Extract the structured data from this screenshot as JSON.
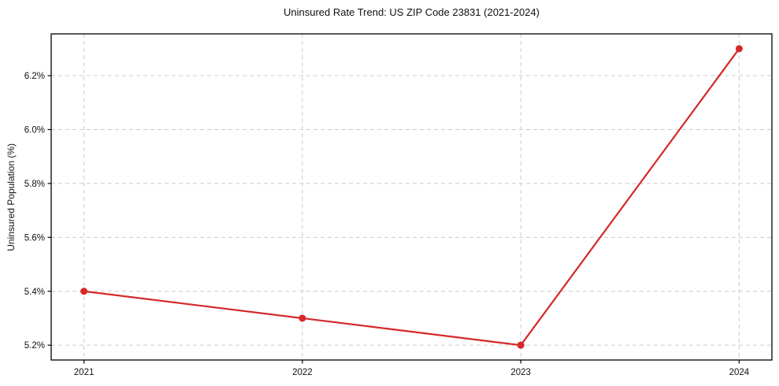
{
  "chart_data": {
    "type": "line",
    "title": "Uninsured Rate Trend: US ZIP Code 23831 (2021-2024)",
    "xlabel": "",
    "ylabel": "Uninsured Population (%)",
    "x": [
      2021,
      2022,
      2023,
      2024
    ],
    "values": [
      5.4,
      5.3,
      5.2,
      6.3
    ],
    "xticks": [
      {
        "value": 2021,
        "label": "2021"
      },
      {
        "value": 2022,
        "label": "2022"
      },
      {
        "value": 2023,
        "label": "2023"
      },
      {
        "value": 2024,
        "label": "2024"
      }
    ],
    "yticks": [
      {
        "value": 5.2,
        "label": "5.2%"
      },
      {
        "value": 5.4,
        "label": "5.4%"
      },
      {
        "value": 5.6,
        "label": "5.6%"
      },
      {
        "value": 5.8,
        "label": "5.8%"
      },
      {
        "value": 6.0,
        "label": "6.0%"
      },
      {
        "value": 6.2,
        "label": "6.2%"
      }
    ],
    "xlim": [
      2020.85,
      2024.15
    ],
    "ylim": [
      5.145,
      6.355
    ],
    "grid": true,
    "grid_style": "dashed",
    "legend": "none",
    "colors": {
      "line": "#d62728",
      "grid": "#cccccc",
      "frame": "#000000",
      "background": "#ffffff",
      "text": "#111111"
    }
  }
}
